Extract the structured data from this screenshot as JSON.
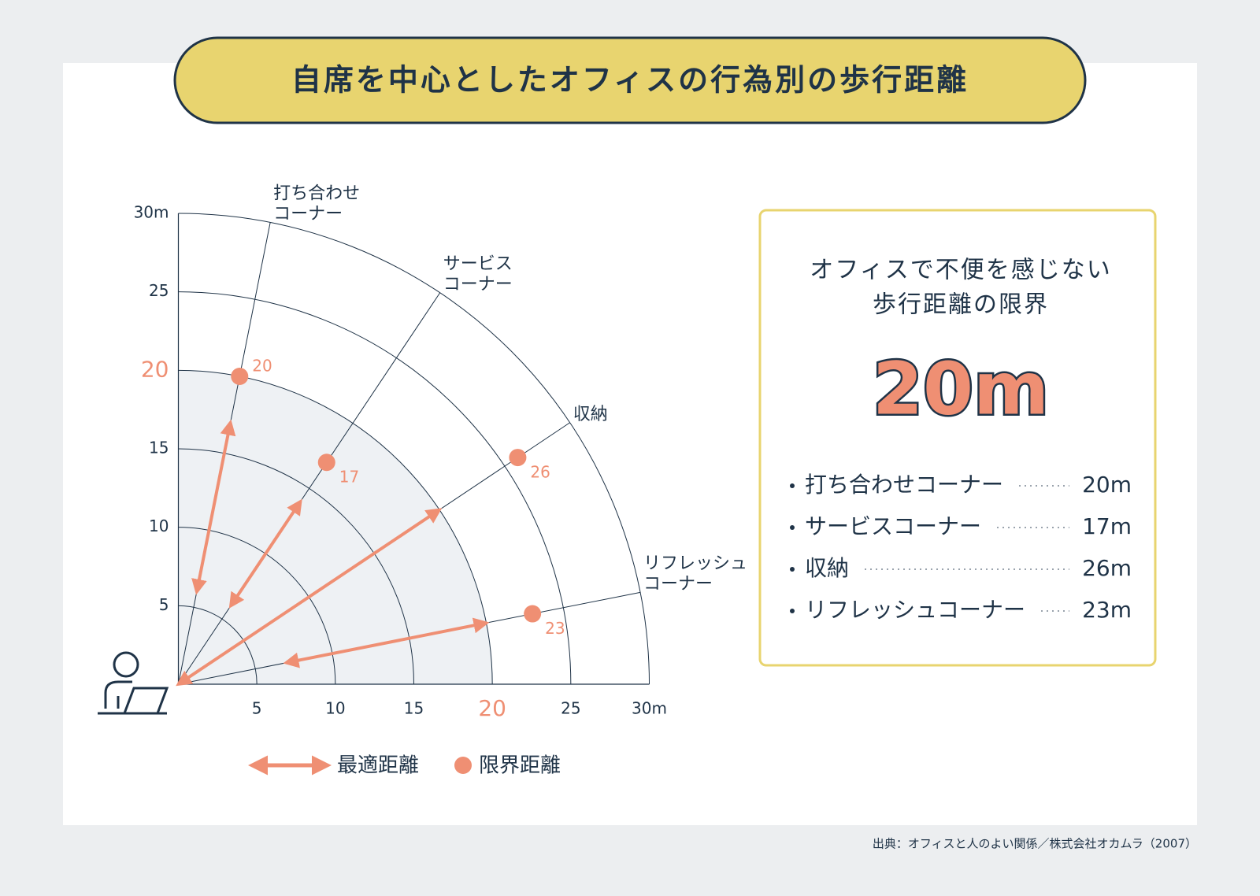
{
  "title": "自席を中心としたオフィスの行為別の歩行距離",
  "chart_data": {
    "type": "polar",
    "categories": [
      [
        "打ち合わせ",
        "コーナー"
      ],
      [
        "サービス",
        "コーナー"
      ],
      [
        "収納"
      ],
      [
        "リフレッシュ",
        "コーナー"
      ]
    ],
    "rlim": [
      0,
      30
    ],
    "rticks": [
      5,
      10,
      15,
      20,
      25,
      {
        "value": 30,
        "label": "30m"
      }
    ],
    "highlight": 20,
    "series": [
      {
        "name": "最適距離",
        "color": "#ef8f73",
        "values": [
          [
            6,
            17
          ],
          [
            6,
            14
          ],
          [
            0,
            20
          ],
          [
            7,
            20
          ]
        ]
      },
      {
        "name": "限界距離",
        "color": "#ef8f73",
        "values": [
          20,
          17,
          26,
          23
        ]
      }
    ]
  },
  "panel": {
    "title": [
      "オフィスで不便を感じない",
      "歩行距離の限界"
    ],
    "value": "20m",
    "items": [
      {
        "name": "打ち合わせコーナー",
        "value": "20m"
      },
      {
        "name": "サービスコーナー",
        "value": "17m"
      },
      {
        "name": "収納",
        "value": "26m"
      },
      {
        "name": "リフレッシュコーナー",
        "value": "23m"
      }
    ]
  },
  "source": "出典：オフィスと人のよい関係／株式会社オカムラ（2007）"
}
